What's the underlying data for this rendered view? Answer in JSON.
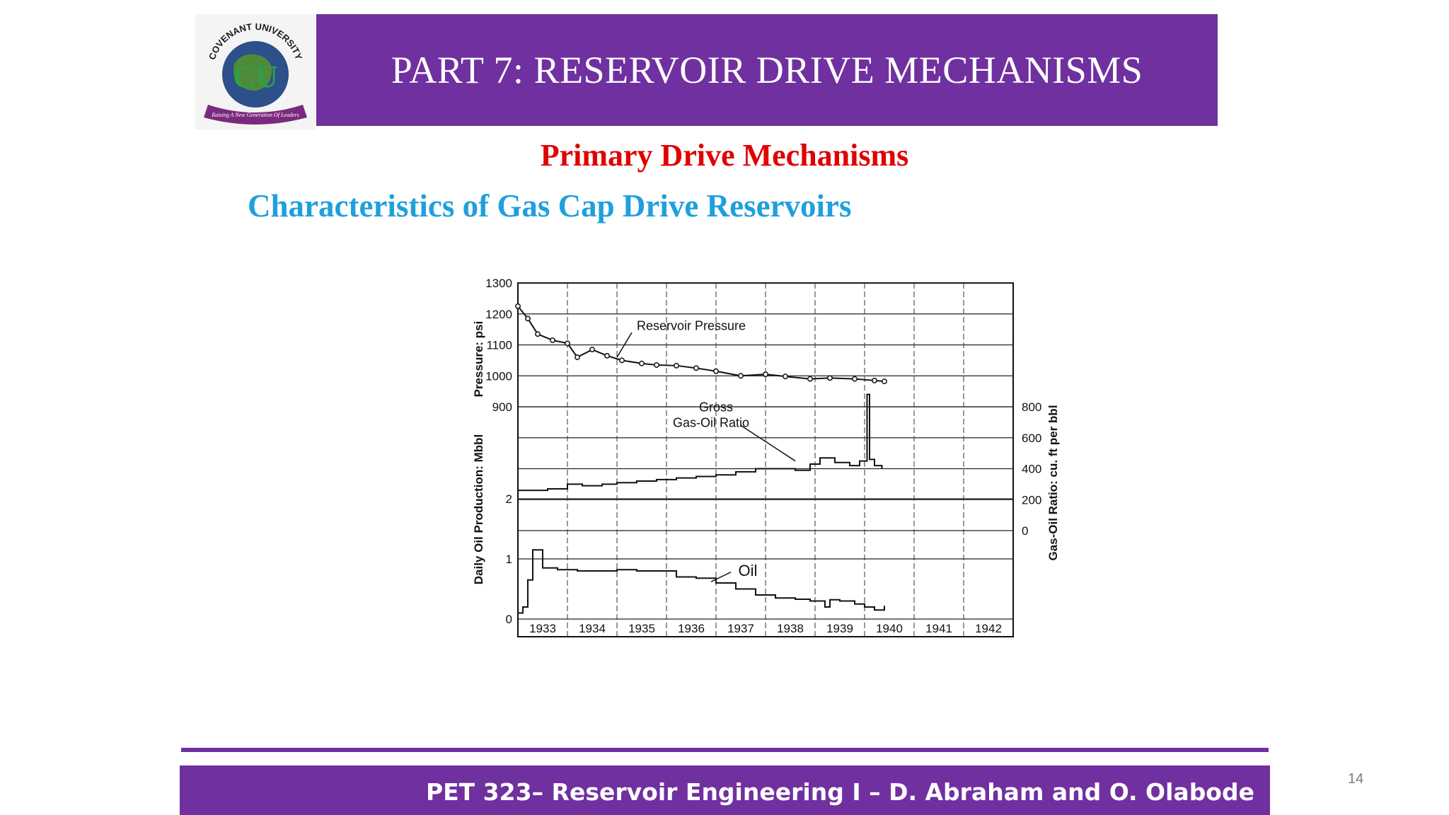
{
  "header": {
    "title": "PART 7: RESERVOIR DRIVE MECHANISMS",
    "logo_text": "COVENANT UNIVERSITY",
    "logo_motto": "Raising A New Generation Of Leaders",
    "logo_initials": "CU"
  },
  "subtitle": "Primary Drive Mechanisms",
  "section_title": "Characteristics of  Gas Cap Drive Reservoirs",
  "footer": {
    "text": "PET 323– Reservoir Engineering I – D. Abraham and  O. Olabode",
    "page": "14"
  },
  "colors": {
    "purple": "#7030A0",
    "red": "#E00000",
    "blue": "#1FA0DC"
  },
  "chart_data": {
    "type": "line",
    "x_tick_labels": [
      "1933",
      "1934",
      "1935",
      "1936",
      "1937",
      "1938",
      "1939",
      "1940",
      "1941",
      "1942"
    ],
    "xlim": [
      1933,
      1943
    ],
    "pressure_axis": {
      "label": "Pressure: psi",
      "range": [
        900,
        1300
      ],
      "ticks": [
        "1300",
        "1200",
        "1100",
        "1000",
        "900"
      ]
    },
    "gor_axis": {
      "label": "Gas-Oil Ratio: cu. ft per bbl",
      "range": [
        0,
        800
      ],
      "ticks": [
        "800",
        "600",
        "400",
        "200",
        "0"
      ]
    },
    "oil_axis": {
      "label": "Daily Oil Production: Mbbl",
      "range": [
        0,
        2
      ],
      "ticks": [
        "2",
        "1",
        "0"
      ]
    },
    "annotations": {
      "pressure": "Reservoir Pressure",
      "gor_line1": "Gross",
      "gor_line2": "Gas-Oil Ratio",
      "oil": "Oil"
    },
    "series": [
      {
        "name": "Reservoir Pressure",
        "x": [
          1933.0,
          1933.2,
          1933.4,
          1933.7,
          1934.0,
          1934.2,
          1934.5,
          1934.8,
          1935.1,
          1935.5,
          1935.8,
          1936.2,
          1936.6,
          1937.0,
          1937.5,
          1938.0,
          1938.4,
          1938.9,
          1939.3,
          1939.8,
          1940.2,
          1940.4
        ],
        "values": [
          1225,
          1185,
          1135,
          1115,
          1105,
          1060,
          1085,
          1065,
          1050,
          1040,
          1035,
          1033,
          1025,
          1015,
          1000,
          1005,
          998,
          990,
          993,
          990,
          985,
          982
        ]
      },
      {
        "name": "Gross Gas-Oil Ratio",
        "x": [
          1933.0,
          1933.3,
          1933.6,
          1934.0,
          1934.3,
          1934.7,
          1935.0,
          1935.4,
          1935.8,
          1936.2,
          1936.6,
          1937.0,
          1937.4,
          1937.8,
          1938.2,
          1938.6,
          1938.9,
          1939.1,
          1939.4,
          1939.7,
          1939.9,
          1940.05,
          1940.1,
          1940.2,
          1940.35
        ],
        "values": [
          260,
          260,
          270,
          300,
          290,
          300,
          310,
          320,
          330,
          340,
          350,
          360,
          380,
          400,
          400,
          390,
          430,
          470,
          440,
          420,
          450,
          880,
          460,
          420,
          400
        ]
      },
      {
        "name": "Oil",
        "x": [
          1933.0,
          1933.1,
          1933.2,
          1933.3,
          1933.5,
          1933.8,
          1934.2,
          1934.6,
          1935.0,
          1935.4,
          1935.8,
          1936.2,
          1936.6,
          1937.0,
          1937.4,
          1937.8,
          1938.2,
          1938.6,
          1938.9,
          1939.2,
          1939.3,
          1939.5,
          1939.8,
          1940.0,
          1940.2,
          1940.4
        ],
        "values": [
          0.1,
          0.2,
          0.65,
          1.15,
          0.85,
          0.82,
          0.8,
          0.8,
          0.82,
          0.8,
          0.8,
          0.7,
          0.68,
          0.6,
          0.5,
          0.4,
          0.35,
          0.33,
          0.3,
          0.2,
          0.32,
          0.3,
          0.25,
          0.2,
          0.15,
          0.22
        ]
      }
    ]
  }
}
